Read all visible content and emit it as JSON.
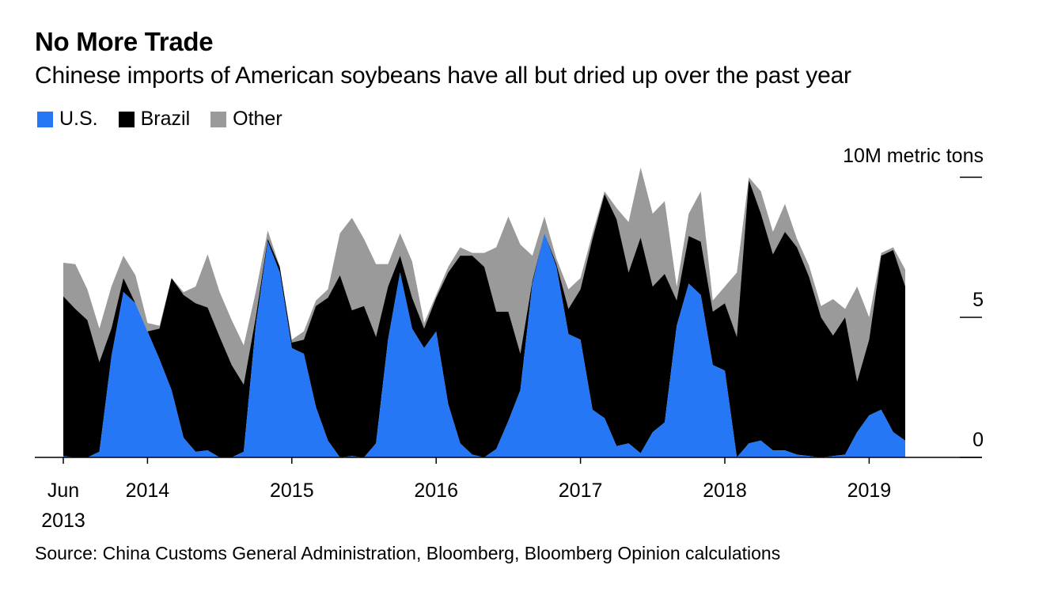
{
  "title": "No More Trade",
  "subtitle": "Chinese imports of American soybeans have all but dried up over the past year",
  "legend": [
    {
      "label": "U.S.",
      "color": "#2577f6"
    },
    {
      "label": "Brazil",
      "color": "#000000"
    },
    {
      "label": "Other",
      "color": "#9a9a9a"
    }
  ],
  "source": "Source: China Customs General Administration, Bloomberg, Bloomberg Opinion calculations",
  "chart_data": {
    "type": "area",
    "stacked": true,
    "start": "2013-06",
    "x_tick_labels": [
      {
        "month": "2013-06",
        "label": "Jun",
        "label2": "2013"
      },
      {
        "month": "2014-01",
        "label": "2014"
      },
      {
        "month": "2015-01",
        "label": "2015"
      },
      {
        "month": "2016-01",
        "label": "2016"
      },
      {
        "month": "2017-01",
        "label": "2017"
      },
      {
        "month": "2018-01",
        "label": "2018"
      },
      {
        "month": "2019-01",
        "label": "2019"
      }
    ],
    "y_unit_label": "10M metric tons",
    "y_ticks": [
      {
        "value": 10,
        "label": ""
      },
      {
        "value": 5,
        "label": "5"
      },
      {
        "value": 0,
        "label": "0"
      }
    ],
    "ylim": [
      0,
      10
    ],
    "x_end": "2019-10",
    "series": [
      {
        "name": "U.S.",
        "color": "#2577f6",
        "values": [
          0.05,
          0,
          0,
          0.2,
          3.6,
          5.9,
          5.5,
          4.5,
          3.5,
          2.4,
          0.7,
          0.2,
          0.25,
          0,
          0,
          0.2,
          4.7,
          7.7,
          6.6,
          3.9,
          3.7,
          1.8,
          0.6,
          0,
          0.05,
          0,
          0.5,
          4.2,
          6.6,
          4.6,
          3.9,
          4.5,
          1.9,
          0.5,
          0.1,
          0,
          0.3,
          1.3,
          2.4,
          6.2,
          8.0,
          6.8,
          4.4,
          4.2,
          1.7,
          1.4,
          0.4,
          0.5,
          0.15,
          0.9,
          1.25,
          4.7,
          6.2,
          5.8,
          3.3,
          3.1,
          0,
          0.5,
          0.6,
          0.25,
          0.25,
          0.1,
          0.05,
          0,
          0.05,
          0.1,
          0.9,
          1.5,
          1.7,
          0.9,
          0.6
        ]
      },
      {
        "name": "Brazil",
        "color": "#000000",
        "values": [
          5.7,
          5.3,
          4.9,
          3.2,
          1.0,
          0.5,
          0,
          0,
          1.1,
          4.0,
          5.1,
          5.3,
          5.1,
          4.3,
          3.3,
          2.4,
          0.3,
          0.1,
          0.2,
          0.2,
          0.5,
          3.6,
          5.1,
          6.5,
          5.2,
          5.4,
          3.8,
          1.9,
          0.6,
          1.1,
          0.7,
          1.2,
          4.7,
          6.7,
          7.1,
          6.8,
          4.9,
          3.9,
          1.3,
          0.1,
          0,
          0.1,
          0.9,
          1.8,
          6.1,
          8.0,
          8.1,
          6.1,
          7.7,
          5.2,
          5.3,
          0.9,
          1.7,
          1.9,
          1.9,
          2.4,
          4.3,
          9.4,
          8.1,
          7.0,
          7.8,
          7.4,
          6.4,
          5.0,
          4.3,
          4.9,
          1.8,
          2.7,
          5.5,
          6.5,
          5.5
        ]
      },
      {
        "name": "Other",
        "color": "#9a9a9a",
        "values": [
          1.2,
          1.6,
          1.1,
          1.2,
          1.5,
          0.8,
          1.0,
          0.3,
          0.1,
          0,
          0.1,
          0.6,
          1.9,
          1.6,
          1.6,
          1.4,
          0.9,
          0.3,
          0,
          0.1,
          0.3,
          0.2,
          0.3,
          1.5,
          3.3,
          2.4,
          2.6,
          0.8,
          0.8,
          1.3,
          0.2,
          0.1,
          0.2,
          0.3,
          0.1,
          0.5,
          2.3,
          3.4,
          3.9,
          0.9,
          0.6,
          0.2,
          0.7,
          0.4,
          0.2,
          0.1,
          0.4,
          1.8,
          2.5,
          2.6,
          2.6,
          0.5,
          0.8,
          1.8,
          0.4,
          0.6,
          2.3,
          0.1,
          0.8,
          0.8,
          1.0,
          0.3,
          0.4,
          0.4,
          1.3,
          0.3,
          3.4,
          0.8,
          0.1,
          0.1,
          0.6
        ]
      }
    ]
  }
}
